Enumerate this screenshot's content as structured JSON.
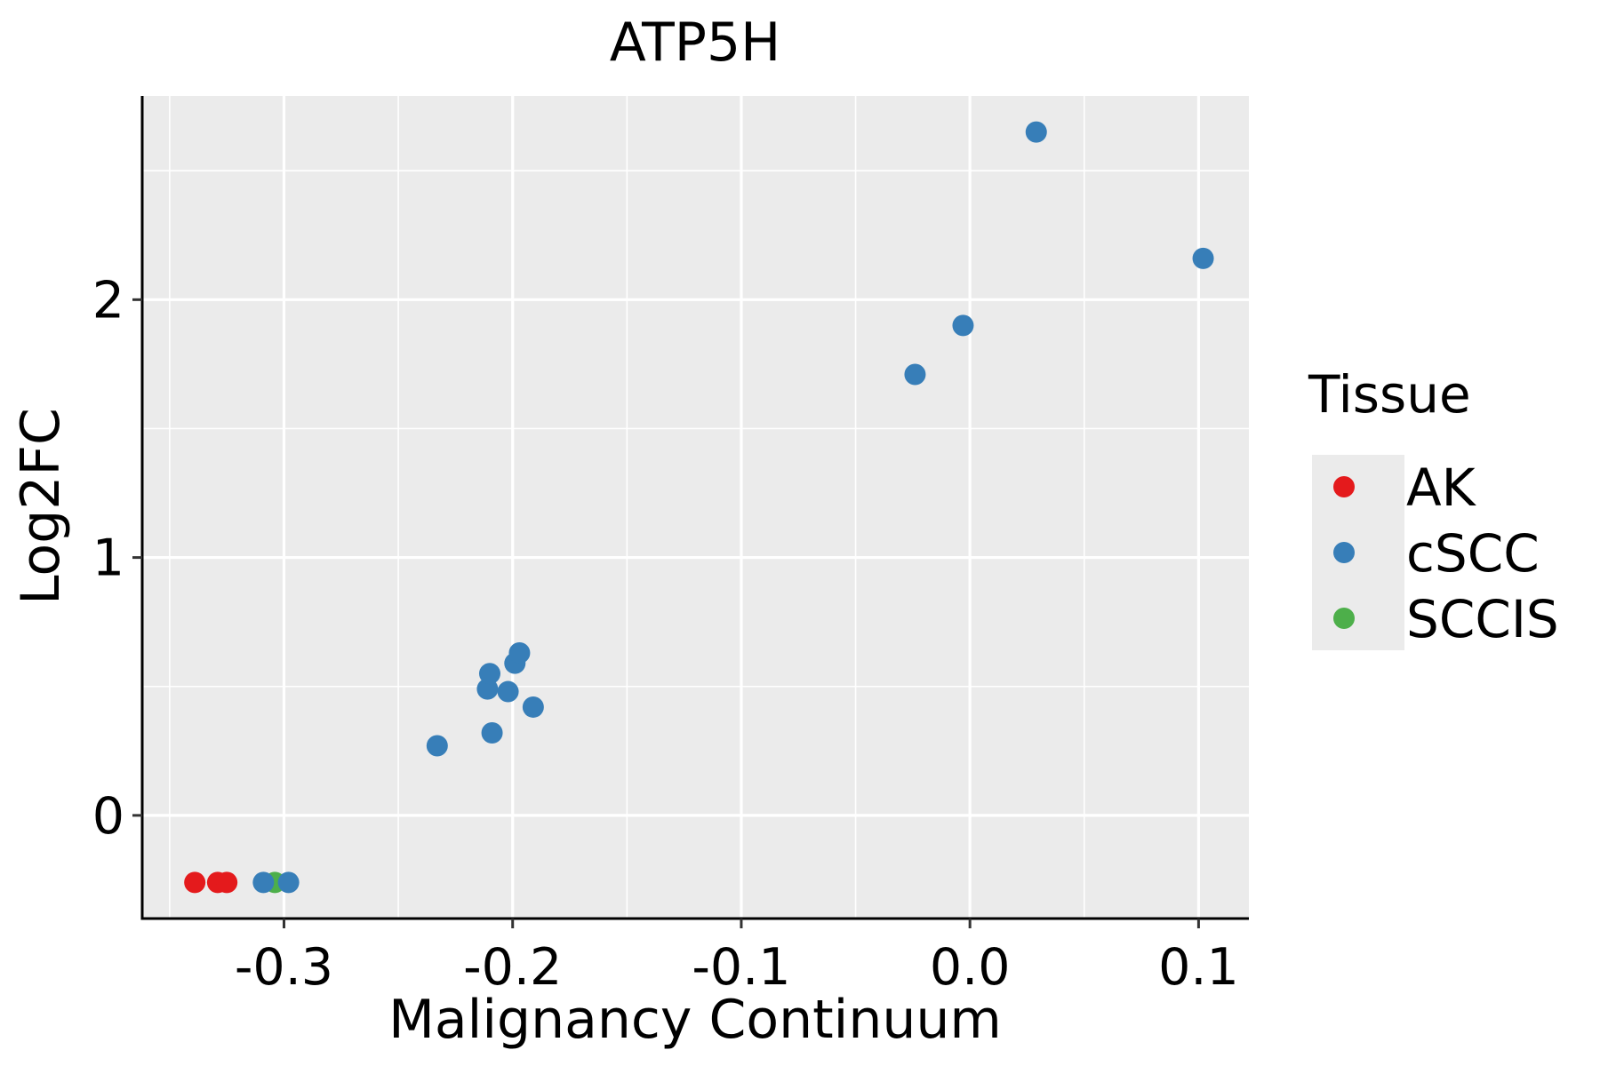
{
  "chart_data": {
    "type": "scatter",
    "title": "ATP5H",
    "xlabel": "Malignancy Continuum",
    "ylabel": "Log2FC",
    "xlim": [
      -0.362,
      0.122
    ],
    "ylim": [
      -0.4,
      2.79
    ],
    "x_ticks": [
      -0.3,
      -0.2,
      -0.1,
      0.0,
      0.1
    ],
    "x_tick_labels": [
      "-0.3",
      "-0.2",
      "-0.1",
      "0.0",
      "0.1"
    ],
    "x_minor_ticks": [
      -0.35,
      -0.25,
      -0.15,
      -0.05,
      0.05
    ],
    "y_ticks": [
      0,
      1,
      2
    ],
    "y_tick_labels": [
      "0",
      "1",
      "2"
    ],
    "y_minor_ticks": [
      0.5,
      1.5,
      2.5
    ],
    "grid": true,
    "legend": {
      "title": "Tissue",
      "placement": "right",
      "entries": [
        {
          "label": "AK",
          "color": "#E41A1C"
        },
        {
          "label": "cSCC",
          "color": "#377EB8"
        },
        {
          "label": "SCCIS",
          "color": "#4DAF4A"
        }
      ]
    },
    "series": [
      {
        "name": "AK",
        "color": "#E41A1C",
        "points": [
          {
            "x": -0.339,
            "y": -0.26
          },
          {
            "x": -0.329,
            "y": -0.26
          },
          {
            "x": -0.325,
            "y": -0.26
          }
        ]
      },
      {
        "name": "SCCIS",
        "color": "#4DAF4A",
        "points": [
          {
            "x": -0.304,
            "y": -0.26
          }
        ]
      },
      {
        "name": "cSCC",
        "color": "#377EB8",
        "points": [
          {
            "x": -0.309,
            "y": -0.26
          },
          {
            "x": -0.298,
            "y": -0.26
          },
          {
            "x": -0.233,
            "y": 0.27
          },
          {
            "x": -0.209,
            "y": 0.32
          },
          {
            "x": -0.211,
            "y": 0.49
          },
          {
            "x": -0.21,
            "y": 0.55
          },
          {
            "x": -0.202,
            "y": 0.48
          },
          {
            "x": -0.199,
            "y": 0.59
          },
          {
            "x": -0.197,
            "y": 0.63
          },
          {
            "x": -0.191,
            "y": 0.42
          },
          {
            "x": -0.024,
            "y": 1.71
          },
          {
            "x": -0.003,
            "y": 1.9
          },
          {
            "x": 0.029,
            "y": 2.65
          },
          {
            "x": 0.102,
            "y": 2.16
          }
        ]
      }
    ]
  }
}
